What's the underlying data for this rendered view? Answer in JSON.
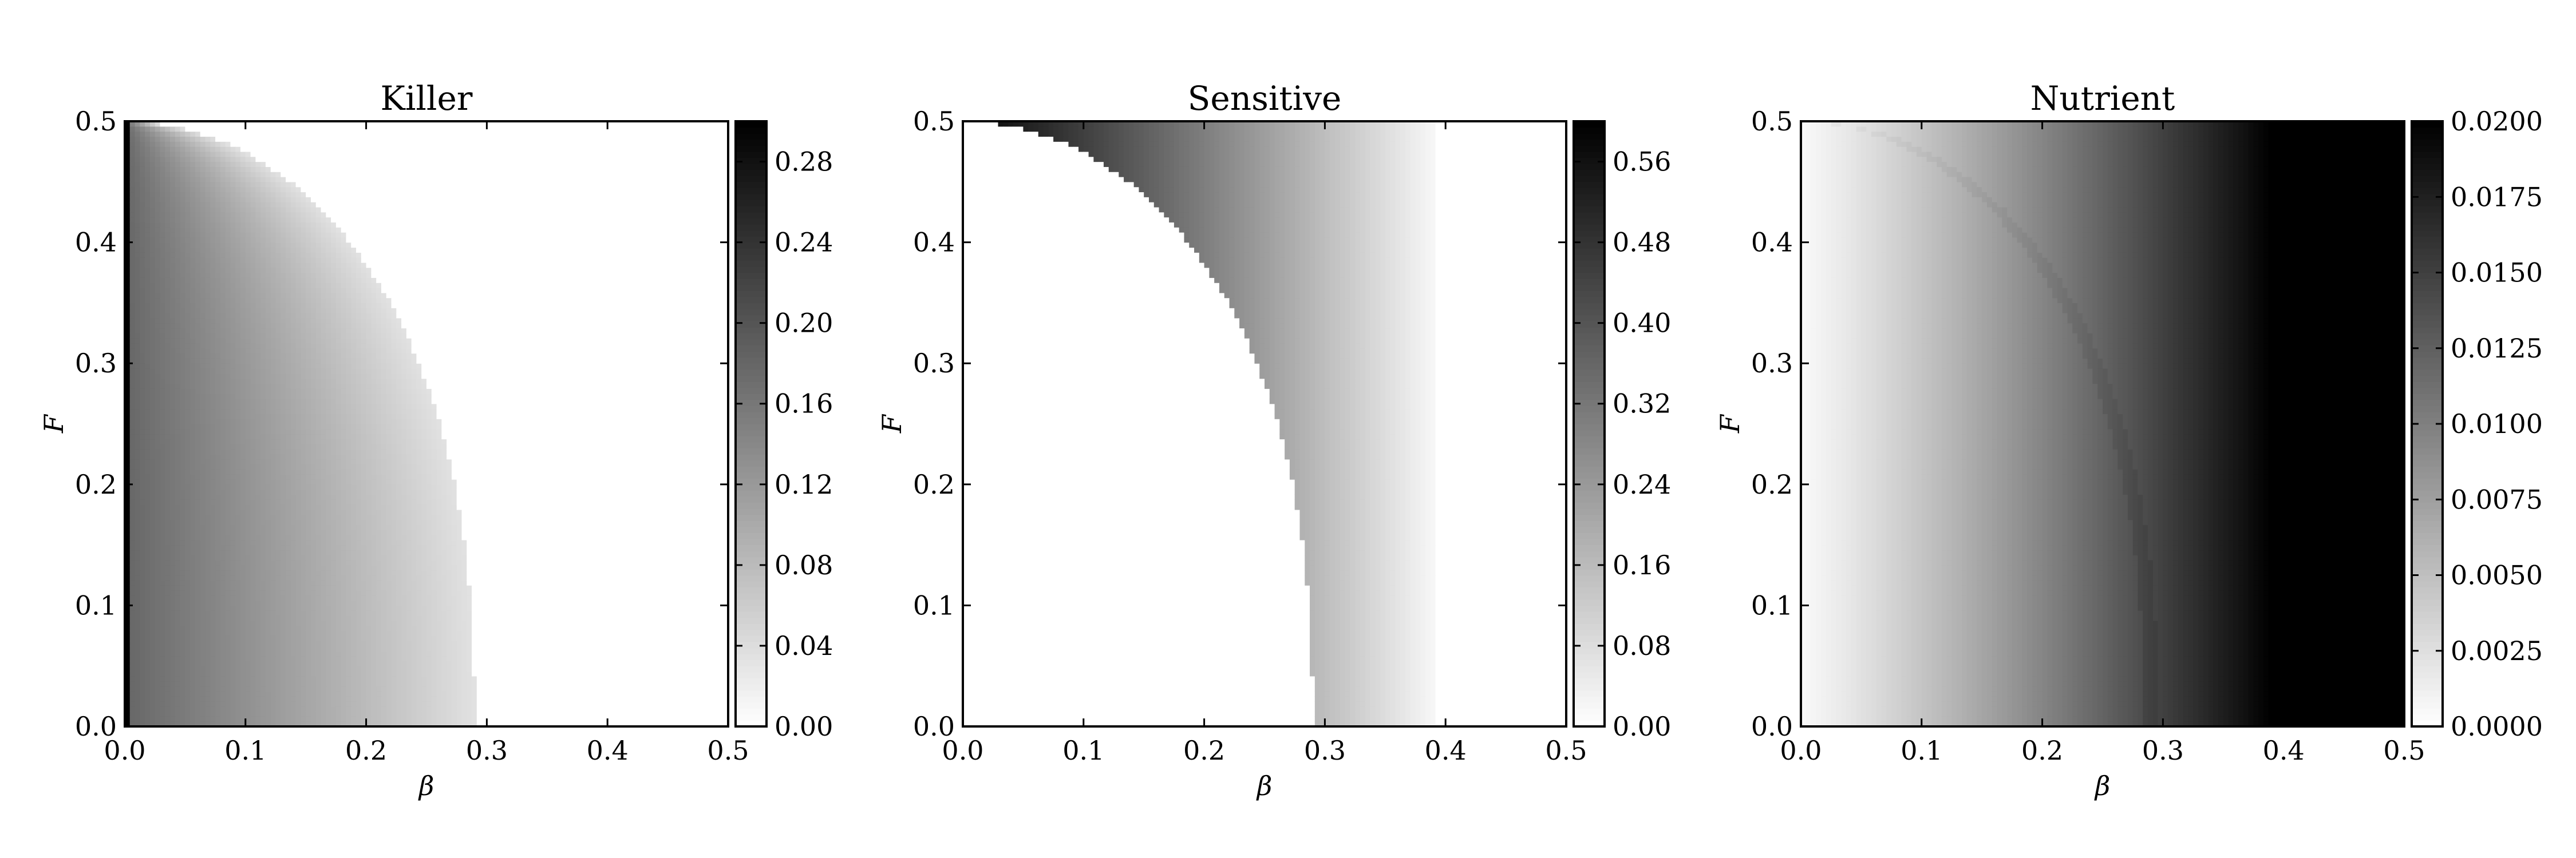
{
  "chart_data": [
    {
      "type": "heatmap",
      "title": "Killer",
      "xlabel": "β",
      "ylabel": "F",
      "xlim": [
        0.0,
        0.5
      ],
      "ylim": [
        0.0,
        0.5
      ],
      "xticks": [
        "0.0",
        "0.1",
        "0.2",
        "0.3",
        "0.4",
        "0.5"
      ],
      "yticks": [
        "0.0",
        "0.1",
        "0.2",
        "0.3",
        "0.4",
        "0.5"
      ],
      "colormap": "gray_r",
      "colorbar": {
        "range": [
          0.0,
          0.3
        ],
        "ticks": [
          0.0,
          0.04,
          0.08,
          0.12,
          0.16,
          0.2,
          0.24,
          0.28
        ],
        "tick_labels": [
          "0.00",
          "0.04",
          "0.08",
          "0.12",
          "0.16",
          "0.20",
          "0.24",
          "0.28"
        ]
      },
      "field": {
        "region": "inside_boundary",
        "boundary_beta_at_F0": 0.29,
        "boundary_F_at_beta0": 0.5,
        "value_at_beta0": 0.3,
        "value_near_beta0": 0.18,
        "value_at_boundary": 0.035,
        "value_outside": 0.0
      }
    },
    {
      "type": "heatmap",
      "title": "Sensitive",
      "xlabel": "β",
      "ylabel": "F",
      "xlim": [
        0.0,
        0.5
      ],
      "ylim": [
        0.0,
        0.5
      ],
      "xticks": [
        "0.0",
        "0.1",
        "0.2",
        "0.3",
        "0.4",
        "0.5"
      ],
      "yticks": [
        "0.0",
        "0.1",
        "0.2",
        "0.3",
        "0.4",
        "0.5"
      ],
      "colormap": "gray_r",
      "colorbar": {
        "range": [
          0.0,
          0.6
        ],
        "ticks": [
          0.0,
          0.08,
          0.16,
          0.24,
          0.32,
          0.4,
          0.48,
          0.56
        ],
        "tick_labels": [
          "0.00",
          "0.08",
          "0.16",
          "0.24",
          "0.32",
          "0.40",
          "0.48",
          "0.56"
        ]
      },
      "field": {
        "region": "outside_boundary",
        "boundary_beta_at_F0": 0.29,
        "cutoff_beta": 0.39,
        "value_at_beta0": 0.6,
        "value_at_cutoff": 0.02,
        "value_inside": 0.0
      }
    },
    {
      "type": "heatmap",
      "title": "Nutrient",
      "xlabel": "β",
      "ylabel": "F",
      "xlim": [
        0.0,
        0.5
      ],
      "ylim": [
        0.0,
        0.5
      ],
      "xticks": [
        "0.0",
        "0.1",
        "0.2",
        "0.3",
        "0.4",
        "0.5"
      ],
      "yticks": [
        "0.0",
        "0.1",
        "0.2",
        "0.3",
        "0.4",
        "0.5"
      ],
      "colormap": "gray_r",
      "colorbar": {
        "range": [
          0.0,
          0.02
        ],
        "ticks": [
          0.0,
          0.0025,
          0.005,
          0.0075,
          0.01,
          0.0125,
          0.015,
          0.0175,
          0.02
        ],
        "tick_labels": [
          "0.0000",
          "0.0025",
          "0.0050",
          "0.0075",
          "0.0100",
          "0.0125",
          "0.0150",
          "0.0175",
          "0.0200"
        ]
      },
      "field": {
        "region": "whole",
        "value_at_beta0": 0.0005,
        "saturation_beta": 0.39,
        "value_max": 0.02,
        "boundary_offset": 0.0006
      }
    }
  ]
}
